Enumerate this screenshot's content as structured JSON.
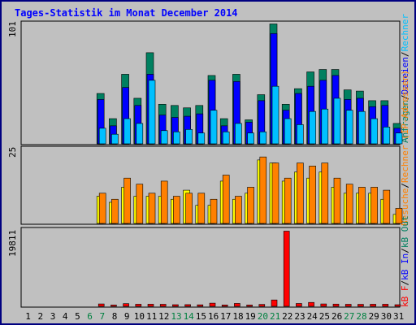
{
  "colors": {
    "background": "#c0c0c0",
    "frame": "#000080",
    "title": "#0000ff",
    "weekday_label": "#000000",
    "weekend_label": "#008040",
    "anfragen": "#008060",
    "dateien": "#0000ff",
    "rechner": "#00c0ff",
    "besuche": "#ff8000",
    "kb_out": "#ffff00",
    "kb_f": "#ff0000",
    "legend_slash": "#000000"
  },
  "chart_data": [
    {
      "type": "bar",
      "title": "Tages-Statistik im Monat December 2014",
      "panel": "requests",
      "ylabel_max": "101",
      "ylim": [
        0,
        101
      ],
      "categories": [
        "1",
        "2",
        "3",
        "4",
        "5",
        "6",
        "7",
        "8",
        "9",
        "10",
        "11",
        "12",
        "13",
        "14",
        "15",
        "16",
        "17",
        "18",
        "19",
        "20",
        "21",
        "22",
        "23",
        "24",
        "25",
        "26",
        "27",
        "28",
        "29",
        "30",
        "31"
      ],
      "weekend_days": [
        "6",
        "7",
        "13",
        "14",
        "20",
        "21",
        "27",
        "28"
      ],
      "series": [
        {
          "name": "Anfragen",
          "values": [
            0,
            0,
            0,
            0,
            0,
            0,
            42,
            21,
            58,
            38,
            76,
            33,
            32,
            30,
            32,
            57,
            21,
            58,
            20,
            41,
            100,
            33,
            46,
            60,
            62,
            62,
            45,
            44,
            36,
            36,
            17
          ]
        },
        {
          "name": "Dateien",
          "values": [
            0,
            0,
            0,
            0,
            0,
            0,
            37,
            15,
            47,
            32,
            58,
            24,
            22,
            23,
            25,
            53,
            15,
            52,
            18,
            36,
            92,
            28,
            42,
            48,
            53,
            57,
            37,
            38,
            31,
            32,
            13
          ]
        },
        {
          "name": "Rechner",
          "values": [
            0,
            0,
            0,
            0,
            0,
            0,
            13,
            8,
            21,
            17,
            53,
            11,
            10,
            12,
            9,
            28,
            10,
            17,
            9,
            10,
            48,
            21,
            16,
            27,
            29,
            38,
            28,
            27,
            21,
            14,
            9
          ]
        }
      ]
    },
    {
      "type": "bar",
      "panel": "visits",
      "ylabel_max": "25",
      "ylim": [
        0,
        25
      ],
      "categories": [
        "1",
        "2",
        "3",
        "4",
        "5",
        "6",
        "7",
        "8",
        "9",
        "10",
        "11",
        "12",
        "13",
        "14",
        "15",
        "16",
        "17",
        "18",
        "19",
        "20",
        "21",
        "22",
        "23",
        "24",
        "25",
        "26",
        "27",
        "28",
        "29",
        "30",
        "31"
      ],
      "series": [
        {
          "name": "Besuche",
          "values": [
            0,
            0,
            0,
            0,
            0,
            0,
            9,
            7,
            12,
            9,
            9,
            9,
            8,
            11,
            6,
            6,
            14,
            8,
            10,
            21,
            20,
            14,
            17,
            15,
            17,
            12,
            10,
            10,
            10,
            8,
            3
          ]
        },
        {
          "name": "Rechner (IP-Adressen)",
          "values": [
            0,
            0,
            0,
            0,
            0,
            0,
            10,
            8,
            15,
            13,
            10,
            14,
            9,
            10,
            10,
            8,
            16,
            9,
            12,
            22,
            20,
            15,
            20,
            19,
            20,
            15,
            13,
            12,
            12,
            11,
            5
          ]
        }
      ]
    },
    {
      "type": "bar",
      "panel": "volume",
      "ylabel_max": "19811",
      "ylim": [
        0,
        19811
      ],
      "categories": [
        "1",
        "2",
        "3",
        "4",
        "5",
        "6",
        "7",
        "8",
        "9",
        "10",
        "11",
        "12",
        "13",
        "14",
        "15",
        "16",
        "17",
        "18",
        "19",
        "20",
        "21",
        "22",
        "23",
        "24",
        "25",
        "26",
        "27",
        "28",
        "29",
        "30",
        "31"
      ],
      "series": [
        {
          "name": "kB F",
          "values": [
            0,
            0,
            0,
            0,
            0,
            0,
            620,
            330,
            700,
            540,
            550,
            530,
            420,
            440,
            390,
            820,
            340,
            750,
            330,
            500,
            1650,
            19500,
            740,
            1010,
            620,
            580,
            530,
            520,
            540,
            540,
            420
          ]
        },
        {
          "name": "kB In",
          "values": [
            0,
            0,
            0,
            0,
            0,
            0,
            0,
            0,
            0,
            0,
            0,
            0,
            0,
            0,
            0,
            0,
            0,
            0,
            0,
            0,
            0,
            0,
            0,
            0,
            0,
            0,
            0,
            0,
            0,
            0,
            0
          ]
        },
        {
          "name": "kB Out",
          "values": [
            0,
            0,
            0,
            0,
            0,
            0,
            0,
            0,
            0,
            0,
            0,
            0,
            0,
            0,
            0,
            0,
            0,
            0,
            0,
            0,
            0,
            0,
            0,
            0,
            0,
            0,
            0,
            0,
            0,
            0,
            0
          ]
        }
      ]
    }
  ],
  "legend": {
    "panel1": [
      "Anfragen",
      "/",
      "Dateien",
      "/",
      "Rechner"
    ],
    "panel2": [
      "Besuche",
      "/",
      "Rechner (IP-Adressen)"
    ],
    "panel3": [
      "kB F",
      "/",
      "kB In",
      "/",
      "kB Out"
    ]
  }
}
